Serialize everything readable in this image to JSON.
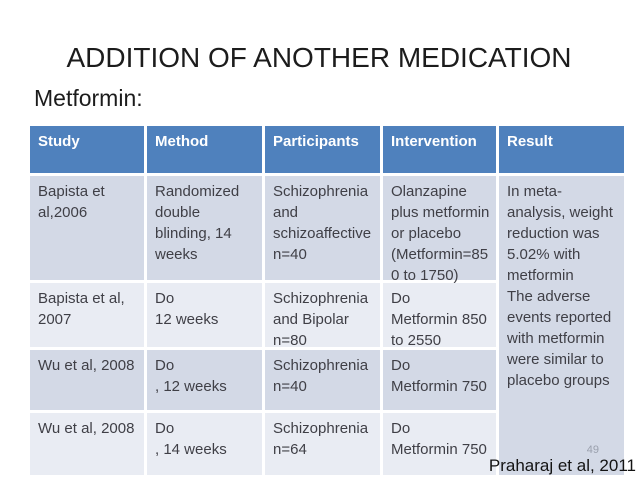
{
  "slide": {
    "title": "ADDITION OF ANOTHER MEDICATION",
    "subtitle": "Metformin:",
    "slide_number": "49",
    "citation": "Praharaj et al, 2011"
  },
  "table": {
    "columns": [
      "Study",
      "Method",
      "Participants",
      "Intervention",
      "Result"
    ],
    "rows": [
      {
        "study": "Bapista et\nal,2006",
        "method": "Randomized double blinding, 14 weeks",
        "participants": "Schizophrenia and schizoaffective n=40",
        "intervention": "Olanzapine plus metformin or placebo (Metformin=850 to 1750)"
      },
      {
        "study": "Bapista et al, 2007",
        "method": "Do\n12 weeks",
        "participants": "Schizophrenia and Bipolar n=80",
        "intervention": "Do\nMetformin 850 to 2550"
      },
      {
        "study": "Wu et al, 2008",
        "method": "Do\n, 12 weeks",
        "participants": "Schizophrenia\nn=40",
        "intervention": "Do\nMetformin 750"
      },
      {
        "study": "Wu et al, 2008",
        "method": "Do\n, 14 weeks",
        "participants": "Schizophrenia\nn=64",
        "intervention": "Do\nMetformin 750"
      }
    ],
    "result_merged": "In meta-analysis, weight reduction was 5.02% with metformin\nThe adverse events reported with metformin were similar to placebo groups"
  },
  "colors": {
    "header_bg": "#4f81bd",
    "header_text": "#ffffff",
    "band_dark": "#d3d9e6",
    "band_light": "#e9ecf3",
    "body_text": "#3f3f46"
  }
}
